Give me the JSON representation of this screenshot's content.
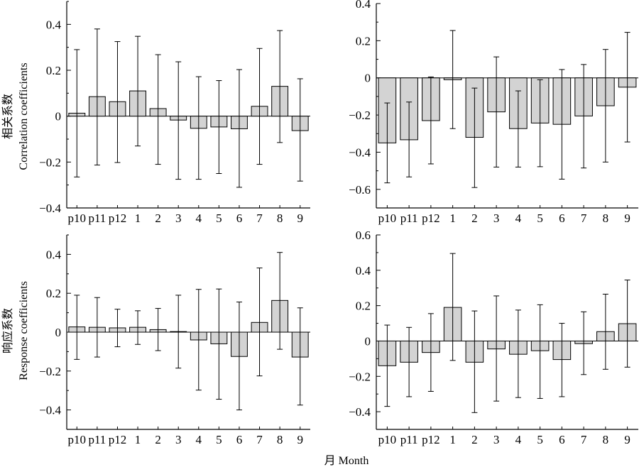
{
  "figure": {
    "xlabel": "月 Month",
    "ylabel_top_cn": "相关系数",
    "ylabel_top_en": "Correlation coefficients",
    "ylabel_bottom_cn": "响应系数",
    "ylabel_bottom_en": "Response coefficients"
  },
  "colors": {
    "bar_fill": "#d3d3d3",
    "stroke": "#000000"
  },
  "chart_data": [
    {
      "type": "bar",
      "panel": "top-left",
      "categories": [
        "p10",
        "p11",
        "p12",
        "1",
        "2",
        "3",
        "4",
        "5",
        "6",
        "7",
        "8",
        "9"
      ],
      "values": [
        0.013,
        0.085,
        0.063,
        0.11,
        0.033,
        -0.017,
        -0.053,
        -0.047,
        -0.055,
        0.043,
        0.13,
        -0.063
      ],
      "err_high": [
        0.29,
        0.38,
        0.325,
        0.348,
        0.268,
        0.237,
        0.172,
        0.155,
        0.203,
        0.295,
        0.373,
        0.163
      ],
      "err_low": [
        -0.265,
        -0.213,
        -0.202,
        -0.13,
        -0.21,
        -0.275,
        -0.275,
        -0.25,
        -0.31,
        -0.21,
        -0.115,
        -0.283
      ],
      "ylabel": "相关系数 Correlation coefficients",
      "ylim": [
        -0.4,
        0.5
      ],
      "yticks": [
        -0.4,
        -0.2,
        0,
        0.2,
        0.4
      ],
      "ytick_labels": [
        "−0.4",
        "−0.2",
        "0",
        "0.2",
        "0.4"
      ],
      "grid": false
    },
    {
      "type": "bar",
      "panel": "top-right",
      "categories": [
        "p10",
        "p11",
        "p12",
        "1",
        "2",
        "3",
        "4",
        "5",
        "6",
        "7",
        "8",
        "9"
      ],
      "values": [
        -0.35,
        -0.333,
        -0.23,
        -0.01,
        -0.32,
        -0.183,
        -0.273,
        -0.243,
        -0.25,
        -0.205,
        -0.15,
        -0.05
      ],
      "err_high": [
        -0.135,
        -0.13,
        0.005,
        0.255,
        -0.055,
        0.113,
        -0.07,
        -0.01,
        0.045,
        0.072,
        0.153,
        0.245
      ],
      "err_low": [
        -0.565,
        -0.533,
        -0.463,
        -0.273,
        -0.59,
        -0.48,
        -0.48,
        -0.478,
        -0.545,
        -0.485,
        -0.453,
        -0.345
      ],
      "ylim": [
        -0.7,
        0.4
      ],
      "yticks": [
        -0.6,
        -0.4,
        -0.2,
        0,
        0.2,
        0.4
      ],
      "ytick_labels": [
        "−0.6",
        "−0.4",
        "−0.2",
        "0",
        "0.2",
        "0.4"
      ],
      "grid": false
    },
    {
      "type": "bar",
      "panel": "bottom-left",
      "categories": [
        "p10",
        "p11",
        "p12",
        "1",
        "2",
        "3",
        "4",
        "5",
        "6",
        "7",
        "8",
        "9"
      ],
      "values": [
        0.027,
        0.025,
        0.022,
        0.025,
        0.013,
        0.003,
        -0.04,
        -0.06,
        -0.125,
        0.05,
        0.163,
        -0.128
      ],
      "err_high": [
        0.19,
        0.178,
        0.118,
        0.11,
        0.122,
        0.19,
        0.22,
        0.222,
        0.155,
        0.33,
        0.41,
        0.125
      ],
      "err_low": [
        -0.14,
        -0.128,
        -0.075,
        -0.063,
        -0.095,
        -0.185,
        -0.298,
        -0.345,
        -0.4,
        -0.225,
        -0.088,
        -0.375
      ],
      "ylabel": "响应系数 Response coefficients",
      "ylim": [
        -0.5,
        0.5
      ],
      "yticks": [
        -0.4,
        -0.2,
        0,
        0.2,
        0.4
      ],
      "ytick_labels": [
        "−0.4",
        "−0.2",
        "0",
        "0.2",
        "0.4"
      ],
      "grid": false
    },
    {
      "type": "bar",
      "panel": "bottom-right",
      "categories": [
        "p10",
        "p11",
        "p12",
        "1",
        "2",
        "3",
        "4",
        "5",
        "6",
        "7",
        "8",
        "9"
      ],
      "values": [
        -0.14,
        -0.12,
        -0.065,
        0.19,
        -0.12,
        -0.045,
        -0.075,
        -0.055,
        -0.105,
        -0.015,
        0.053,
        0.098
      ],
      "err_high": [
        0.09,
        0.077,
        0.155,
        0.495,
        0.17,
        0.255,
        0.175,
        0.205,
        0.1,
        0.165,
        0.265,
        0.345
      ],
      "err_low": [
        -0.37,
        -0.315,
        -0.285,
        -0.11,
        -0.405,
        -0.34,
        -0.32,
        -0.325,
        -0.315,
        -0.19,
        -0.16,
        -0.148
      ],
      "ylim": [
        -0.5,
        0.6
      ],
      "yticks": [
        -0.4,
        -0.2,
        0,
        0.2,
        0.4,
        0.6
      ],
      "ytick_labels": [
        "−0.4",
        "−0.2",
        "0",
        "0.2",
        "0.4",
        "0.6"
      ],
      "grid": false
    }
  ]
}
